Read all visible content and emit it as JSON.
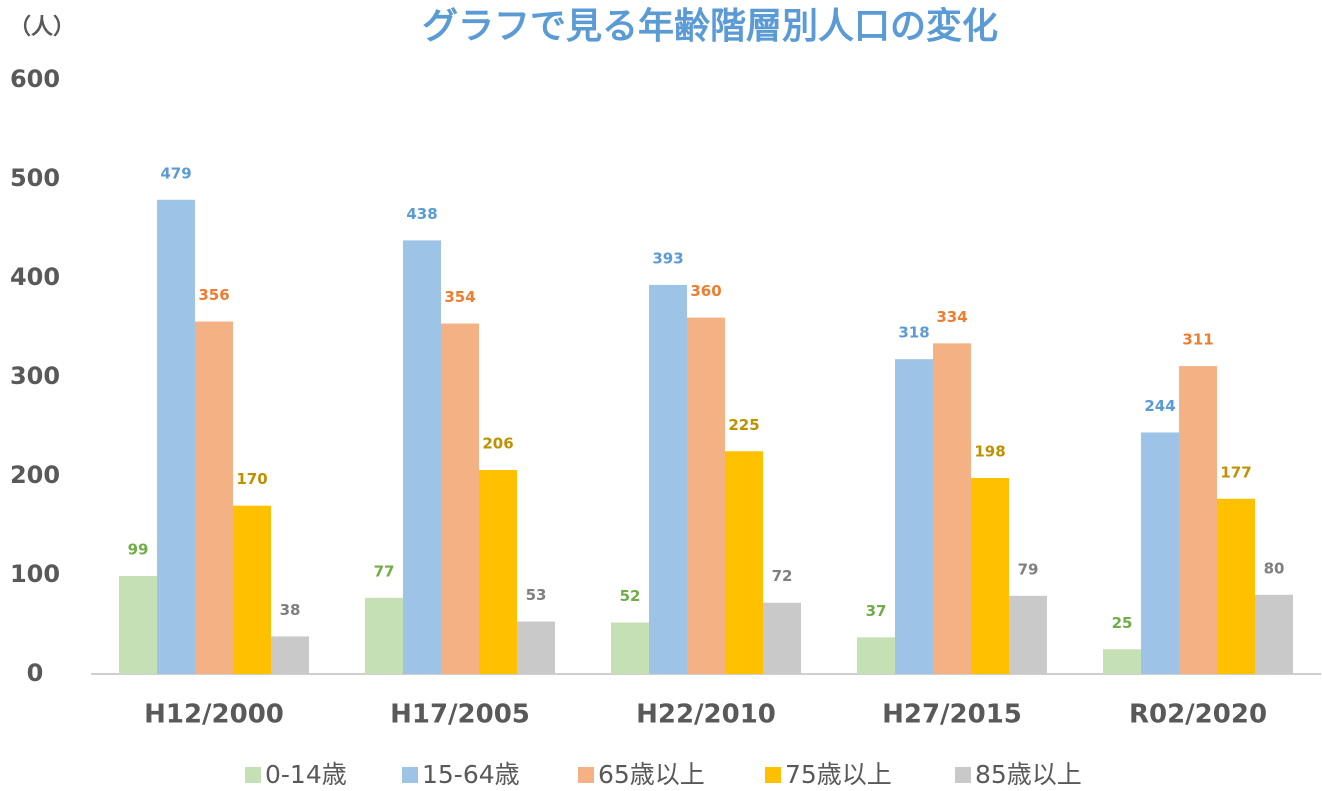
{
  "chart_data": {
    "type": "bar",
    "title": "グラフで見る年齢階層別人口の変化",
    "y_label": "（人）",
    "categories": [
      "H12/2000",
      "H17/2005",
      "H22/2010",
      "H27/2015",
      "R02/2020"
    ],
    "series": [
      {
        "name": "0-14歳",
        "color": "#c5e0b4",
        "label_color": "#70ad47",
        "values": [
          99,
          77,
          52,
          37,
          25
        ]
      },
      {
        "name": "15-64歳",
        "color": "#9dc3e6",
        "label_color": "#5b9bd5",
        "values": [
          479,
          438,
          393,
          318,
          244
        ]
      },
      {
        "name": "65歳以上",
        "color": "#f4b183",
        "label_color": "#ed7d31",
        "values": [
          356,
          354,
          360,
          334,
          311
        ]
      },
      {
        "name": "75歳以上",
        "color": "#ffc000",
        "label_color": "#bf9000",
        "values": [
          170,
          206,
          225,
          198,
          177
        ]
      },
      {
        "name": "85歳以上",
        "color": "#c9c9c9",
        "label_color": "#7f7f7f",
        "values": [
          38,
          53,
          72,
          79,
          80
        ]
      }
    ],
    "ylim": [
      0,
      600
    ],
    "yticks": [
      0,
      100,
      200,
      300,
      400,
      500,
      600
    ],
    "grid": false,
    "legend": "bottom"
  }
}
